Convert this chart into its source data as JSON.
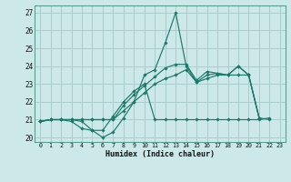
{
  "title": "",
  "xlabel": "Humidex (Indice chaleur)",
  "background_color": "#cce8e8",
  "grid_color": "#aacccc",
  "line_color": "#1a7a6a",
  "xlim": [
    -0.5,
    23.5
  ],
  "ylim": [
    19.75,
    27.4
  ],
  "xticks": [
    0,
    1,
    2,
    3,
    4,
    5,
    6,
    7,
    8,
    9,
    10,
    11,
    12,
    13,
    14,
    15,
    16,
    17,
    18,
    19,
    20,
    21,
    22,
    23
  ],
  "yticks": [
    20,
    21,
    22,
    23,
    24,
    25,
    26,
    27
  ],
  "s1_y": [
    20.9,
    21.0,
    21.0,
    21.0,
    20.9,
    20.4,
    20.0,
    20.3,
    21.1,
    22.0,
    23.5,
    23.8,
    25.3,
    27.0,
    24.0,
    23.1,
    23.5,
    23.6,
    23.5,
    24.0,
    23.5,
    21.1,
    21.0,
    null
  ],
  "s2_y": [
    20.9,
    21.0,
    21.0,
    20.9,
    20.5,
    20.4,
    20.4,
    21.2,
    22.0,
    22.6,
    23.0,
    21.0,
    21.0,
    21.0,
    21.0,
    21.0,
    21.0,
    21.0,
    21.0,
    21.0,
    21.0,
    21.0,
    21.1,
    null
  ],
  "s3_y": [
    20.9,
    21.0,
    21.0,
    21.0,
    21.0,
    21.0,
    21.0,
    21.0,
    21.5,
    22.0,
    22.5,
    23.0,
    23.3,
    23.5,
    23.8,
    23.1,
    23.3,
    23.5,
    23.5,
    23.5,
    23.5,
    21.1,
    null,
    null
  ],
  "s4_y": [
    20.9,
    21.0,
    21.0,
    21.0,
    21.0,
    21.0,
    21.0,
    21.0,
    21.8,
    22.4,
    22.9,
    23.4,
    23.9,
    24.1,
    24.1,
    23.2,
    23.7,
    23.6,
    23.5,
    24.0,
    23.5,
    21.1,
    null,
    null
  ]
}
